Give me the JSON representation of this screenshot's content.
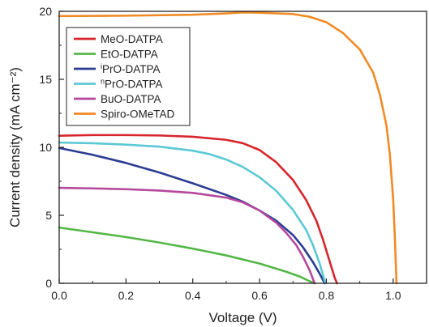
{
  "chart_data": {
    "type": "line",
    "title": "",
    "xlabel": "Voltage (V)",
    "ylabel": "Current density (mA cm⁻²)",
    "xlim": [
      0.0,
      1.1
    ],
    "ylim": [
      0,
      20
    ],
    "x_ticks": [
      "0.0",
      "0.2",
      "0.4",
      "0.6",
      "0.8",
      "1.0"
    ],
    "y_ticks": [
      "0",
      "5",
      "10",
      "15",
      "20"
    ],
    "grid": false,
    "legend_position": "top-left",
    "series": [
      {
        "name": "MeO-DATPA",
        "legend_prefix": "",
        "legend_sup": "",
        "legend_rest": "MeO-DATPA",
        "color": "#d7262b",
        "points": [
          [
            0.0,
            10.85
          ],
          [
            0.1,
            10.9
          ],
          [
            0.2,
            10.9
          ],
          [
            0.3,
            10.87
          ],
          [
            0.4,
            10.78
          ],
          [
            0.5,
            10.55
          ],
          [
            0.55,
            10.3
          ],
          [
            0.6,
            9.8
          ],
          [
            0.65,
            8.9
          ],
          [
            0.7,
            7.6
          ],
          [
            0.74,
            6.1
          ],
          [
            0.77,
            4.6
          ],
          [
            0.79,
            3.2
          ],
          [
            0.81,
            1.6
          ],
          [
            0.825,
            0.4
          ],
          [
            0.832,
            0.0
          ]
        ]
      },
      {
        "name": "EtO-DATPA",
        "legend_prefix": "",
        "legend_sup": "",
        "legend_rest": "EtO-DATPA",
        "color": "#55b748",
        "points": [
          [
            0.0,
            4.1
          ],
          [
            0.1,
            3.75
          ],
          [
            0.2,
            3.4
          ],
          [
            0.3,
            3.0
          ],
          [
            0.4,
            2.55
          ],
          [
            0.5,
            2.05
          ],
          [
            0.6,
            1.45
          ],
          [
            0.68,
            0.85
          ],
          [
            0.72,
            0.5
          ],
          [
            0.75,
            0.15
          ],
          [
            0.765,
            0.0
          ]
        ]
      },
      {
        "name": "iPrO-DATPA",
        "legend_prefix": "",
        "legend_sup": "i",
        "legend_rest": "PrO-DATPA",
        "color": "#2b3d93",
        "points": [
          [
            0.0,
            9.95
          ],
          [
            0.1,
            9.45
          ],
          [
            0.2,
            8.85
          ],
          [
            0.3,
            8.15
          ],
          [
            0.4,
            7.35
          ],
          [
            0.5,
            6.5
          ],
          [
            0.55,
            6.0
          ],
          [
            0.6,
            5.35
          ],
          [
            0.65,
            4.6
          ],
          [
            0.7,
            3.55
          ],
          [
            0.73,
            2.65
          ],
          [
            0.76,
            1.55
          ],
          [
            0.78,
            0.7
          ],
          [
            0.795,
            0.0
          ]
        ]
      },
      {
        "name": "nPrO-DATPA",
        "legend_prefix": "",
        "legend_sup": "n",
        "legend_rest": "PrO-DATPA",
        "color": "#5bc9d4",
        "points": [
          [
            0.0,
            10.35
          ],
          [
            0.1,
            10.3
          ],
          [
            0.2,
            10.2
          ],
          [
            0.3,
            10.05
          ],
          [
            0.4,
            9.75
          ],
          [
            0.45,
            9.5
          ],
          [
            0.5,
            9.1
          ],
          [
            0.55,
            8.55
          ],
          [
            0.6,
            7.8
          ],
          [
            0.65,
            6.8
          ],
          [
            0.7,
            5.4
          ],
          [
            0.74,
            3.9
          ],
          [
            0.76,
            2.8
          ],
          [
            0.78,
            1.45
          ],
          [
            0.79,
            0.6
          ],
          [
            0.797,
            0.0
          ]
        ]
      },
      {
        "name": "BuO-DATPA",
        "legend_prefix": "",
        "legend_sup": "",
        "legend_rest": "BuO-DATPA",
        "color": "#b5489d",
        "points": [
          [
            0.0,
            7.02
          ],
          [
            0.1,
            6.98
          ],
          [
            0.2,
            6.92
          ],
          [
            0.3,
            6.82
          ],
          [
            0.4,
            6.65
          ],
          [
            0.5,
            6.3
          ],
          [
            0.55,
            5.95
          ],
          [
            0.6,
            5.35
          ],
          [
            0.65,
            4.45
          ],
          [
            0.68,
            3.7
          ],
          [
            0.71,
            2.8
          ],
          [
            0.73,
            1.95
          ],
          [
            0.75,
            0.95
          ],
          [
            0.76,
            0.3
          ],
          [
            0.765,
            0.0
          ]
        ]
      },
      {
        "name": "Spiro-OMeTAD",
        "legend_prefix": "",
        "legend_sup": "",
        "legend_rest": "Spiro-OMeTAD",
        "color": "#f08a24",
        "points": [
          [
            0.0,
            19.65
          ],
          [
            0.2,
            19.68
          ],
          [
            0.4,
            19.75
          ],
          [
            0.5,
            19.85
          ],
          [
            0.55,
            19.92
          ],
          [
            0.6,
            19.9
          ],
          [
            0.7,
            19.8
          ],
          [
            0.75,
            19.6
          ],
          [
            0.8,
            19.2
          ],
          [
            0.85,
            18.4
          ],
          [
            0.9,
            17.2
          ],
          [
            0.94,
            15.5
          ],
          [
            0.96,
            13.9
          ],
          [
            0.98,
            11.6
          ],
          [
            0.99,
            9.5
          ],
          [
            1.0,
            6.2
          ],
          [
            1.005,
            3.4
          ],
          [
            1.01,
            0.0
          ]
        ]
      }
    ]
  }
}
